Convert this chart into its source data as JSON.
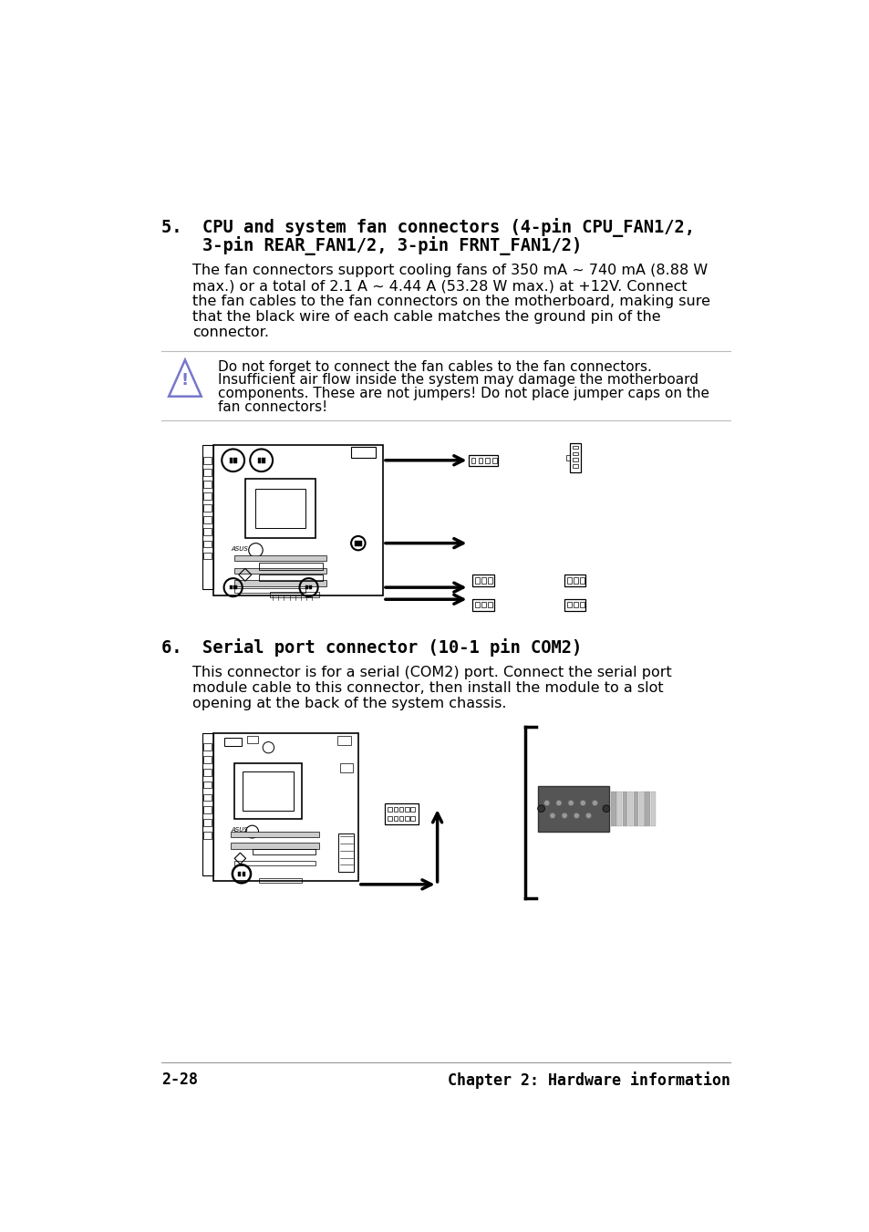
{
  "page_background": "#ffffff",
  "title1_line1": "5.  CPU and system fan connectors (4-pin CPU_FAN1/2,",
  "title1_line2": "    3-pin REAR_FAN1/2, 3-pin FRNT_FAN1/2)",
  "body1_lines": [
    "The fan connectors support cooling fans of 350 mA ~ 740 mA (8.88 W",
    "max.) or a total of 2.1 A ~ 4.44 A (53.28 W max.) at +12V. Connect",
    "the fan cables to the fan connectors on the motherboard, making sure",
    "that the black wire of each cable matches the ground pin of the",
    "connector."
  ],
  "warning_lines": [
    "Do not forget to connect the fan cables to the fan connectors.",
    "Insufficient air flow inside the system may damage the motherboard",
    "components. These are not jumpers! Do not place jumper caps on the",
    "fan connectors!"
  ],
  "title2_line": "6.  Serial port connector (10-1 pin COM2)",
  "body2_lines": [
    "This connector is for a serial (COM2) port. Connect the serial port",
    "module cable to this connector, then install the module to a slot",
    "opening at the back of the system chassis."
  ],
  "footer_left": "2-28",
  "footer_right": "Chapter 2: Hardware information",
  "text_color": "#000000",
  "warn_tri_color": "#7777cc",
  "divider_color": "#bbbbbb"
}
